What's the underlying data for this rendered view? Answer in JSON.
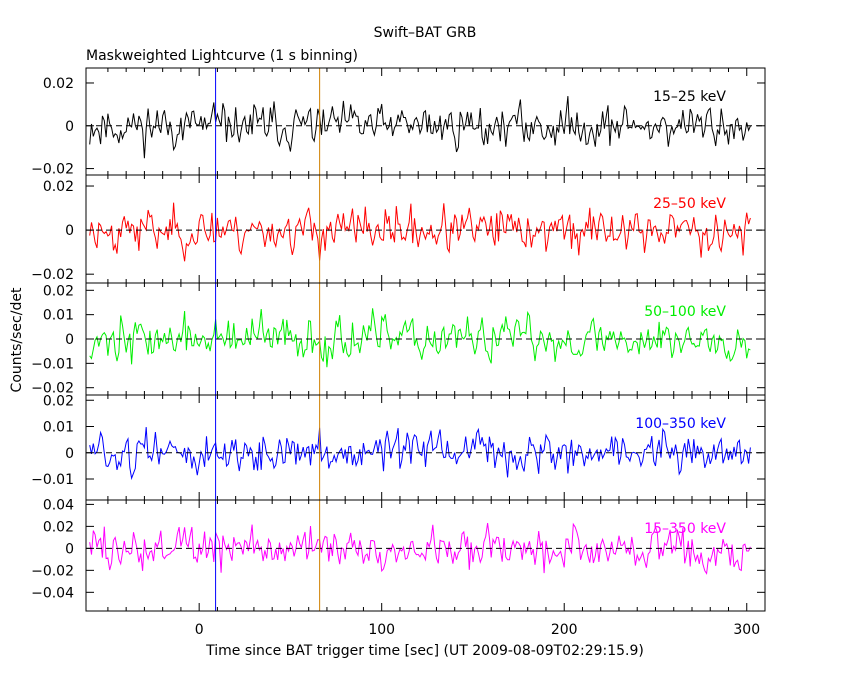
{
  "chart_data": {
    "type": "line",
    "title": "Swift–BAT GRB",
    "subtitle": "Maskweighted Lightcurve (1 s binning)",
    "xlabel": "Time since BAT trigger time [sec] (UT 2009-08-09T02:29:15.9)",
    "ylabel": "Counts/sec/det",
    "xlim": [
      -62,
      310
    ],
    "xticks": [
      0,
      100,
      200,
      300
    ],
    "xtick_labels": [
      "0",
      "100",
      "200",
      "300"
    ],
    "grid": false,
    "markers": [
      {
        "name": "t0",
        "x": 9,
        "color": "#0000ff"
      },
      {
        "name": "t1",
        "x": 66,
        "color": "#d08000"
      }
    ],
    "panels": [
      {
        "band": "15–25 keV",
        "color": "#000000",
        "ylim": [
          -0.023,
          0.027
        ],
        "yticks": [
          -0.02,
          0,
          0.02
        ],
        "ytick_labels": [
          "−0.02",
          "0",
          "0.02"
        ],
        "amp": 0.0075,
        "seed": 11
      },
      {
        "band": "25–50 keV",
        "color": "#ff0000",
        "ylim": [
          -0.024,
          0.025
        ],
        "yticks": [
          -0.02,
          0,
          0.02
        ],
        "ytick_labels": [
          "−0.02",
          "0",
          "0.02"
        ],
        "amp": 0.0075,
        "seed": 23
      },
      {
        "band": "50–100 keV",
        "color": "#00ee00",
        "ylim": [
          -0.023,
          0.023
        ],
        "yticks": [
          -0.02,
          -0.01,
          0,
          0.01,
          0.02
        ],
        "ytick_labels": [
          "−0.02",
          "−0.01",
          "0",
          "0.01",
          "0.02"
        ],
        "amp": 0.0068,
        "seed": 37
      },
      {
        "band": "100–350 keV",
        "color": "#0000ff",
        "ylim": [
          -0.018,
          0.022
        ],
        "yticks": [
          -0.01,
          0,
          0.01,
          0.02
        ],
        "ytick_labels": [
          "−0.01",
          "0",
          "0.01",
          "0.02"
        ],
        "amp": 0.0058,
        "seed": 51
      },
      {
        "band": "15–350 keV",
        "color": "#ff00ff",
        "ylim": [
          -0.057,
          0.044
        ],
        "yticks": [
          -0.04,
          -0.02,
          0,
          0.02,
          0.04
        ],
        "ytick_labels": [
          "−0.04",
          "−0.02",
          "0",
          "0.02",
          "0.04"
        ],
        "amp": 0.015,
        "seed": 73
      }
    ],
    "series_x_range": [
      -60,
      302
    ],
    "binning_sec": 1
  }
}
